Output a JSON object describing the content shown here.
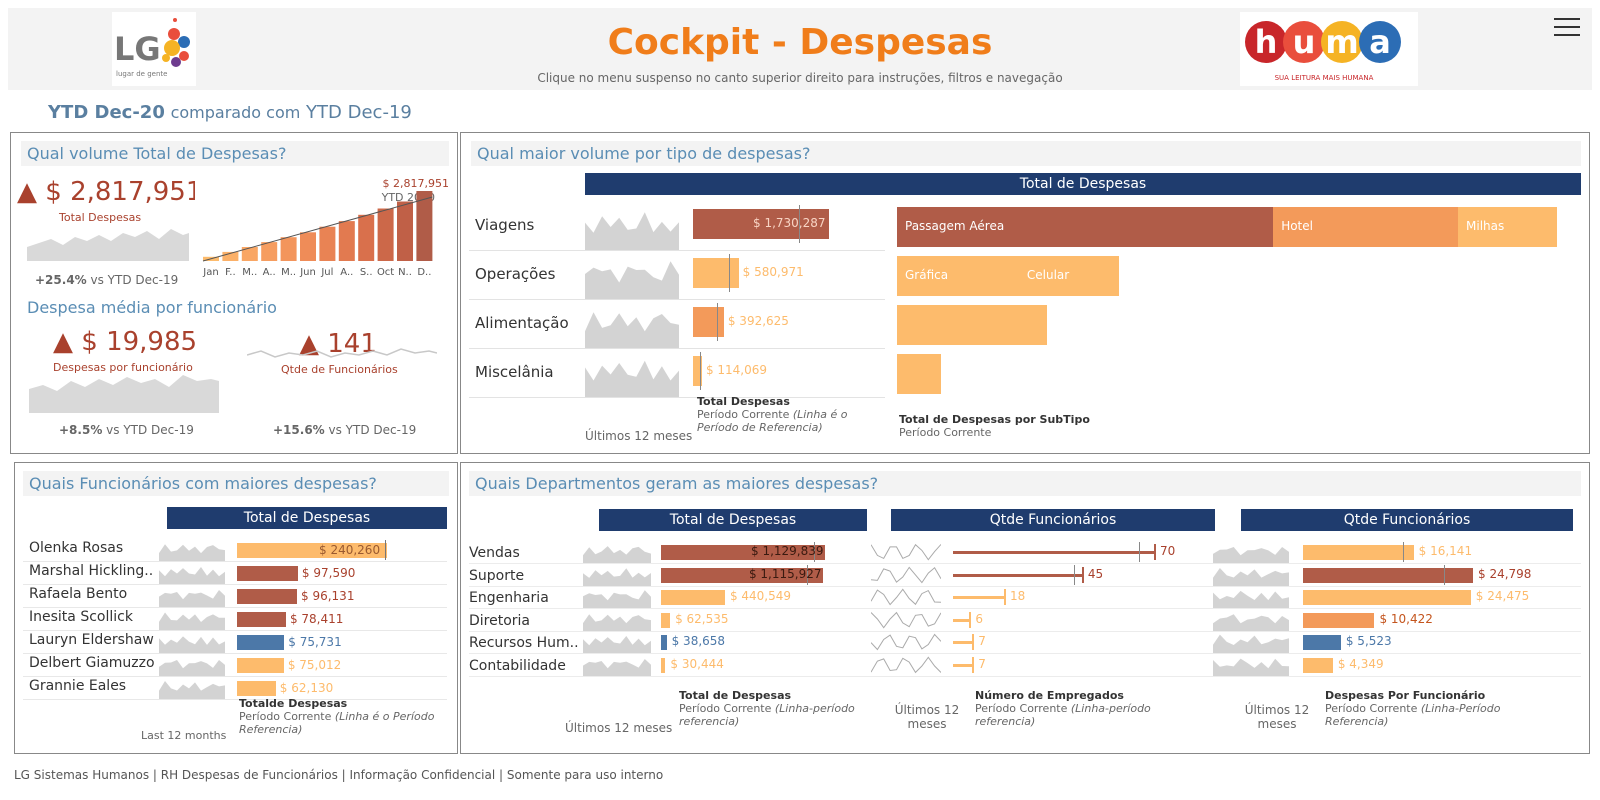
{
  "header": {
    "title": "Cockpit - Despesas",
    "subtitle": "Clique no menu suspenso no canto superior direito para instruções, filtros e navegação",
    "lg_logo_text": "LG",
    "lg_logo_sub": "lugar de gente",
    "huma_logo_tagline": "SUA LEITURA MAIS HUMANA",
    "huma_letters": [
      "h",
      "u",
      "m",
      "a"
    ]
  },
  "period": {
    "current": "YTD Dec-20",
    "compared_label": "comparado com",
    "previous": "YTD Dec-19"
  },
  "colors": {
    "dark_orange": "#b05c48",
    "orange": "#f39a5a",
    "light_orange": "#fdbb6c",
    "blue": "#4c78a8",
    "grey": "#d3d3d3",
    "navy": "#1f3c6e"
  },
  "total_panel": {
    "title": "Qual volume Total de Despesas?",
    "value": "$ 2,817,951",
    "label": "Total Despesas",
    "change": "+25.4%",
    "change_suffix": "vs YTD Dec-19",
    "chart_label_value": "$ 2,817,951",
    "chart_label_ytd": "YTD 2020",
    "months": [
      "Jan",
      "F..",
      "M..",
      "A..",
      "M..",
      "Jun",
      "Jul",
      "A..",
      "S..",
      "Oct",
      "N..",
      "D.."
    ],
    "cumulative_relative": [
      0.06,
      0.13,
      0.2,
      0.27,
      0.34,
      0.41,
      0.49,
      0.57,
      0.66,
      0.75,
      0.85,
      1.0
    ]
  },
  "avg_panel": {
    "title": "Despesa média por funcionário",
    "avg_value": "$ 19,985",
    "avg_label": "Despesas por funcionário",
    "avg_change": "+8.5%",
    "emp_value": "141",
    "emp_label": "Qtde de Funcionários",
    "emp_change": "+15.6%",
    "change_suffix": "vs YTD Dec-19"
  },
  "type_panel": {
    "title": "Qual maior volume por tipo de despesas?",
    "header": "Total de Despesas",
    "categories": [
      "Viagens",
      "Operações",
      "Alimentação",
      "Miscelânia"
    ],
    "values": [
      1730287,
      580971,
      392625,
      114069
    ],
    "value_labels": [
      "$ 1,730,287",
      "$ 580,971",
      "$ 392,625",
      "$ 114,069"
    ],
    "subtypes": [
      [
        {
          "name": "Passagem Aérea",
          "value": 0.57
        },
        {
          "name": "Hotel",
          "value": 0.28
        },
        {
          "name": "Milhas",
          "value": 0.15
        }
      ],
      [
        {
          "name": "Gráfica",
          "value": 0.55
        },
        {
          "name": "Celular",
          "value": 0.45
        }
      ],
      [
        {
          "name": "",
          "value": 1.0
        }
      ],
      [
        {
          "name": "",
          "value": 1.0
        }
      ]
    ],
    "spark_caption": "Últimos 12 meses",
    "bar_caption_title": "Total Despesas",
    "bar_caption_sub": "Período Corrente",
    "bar_caption_ital": "(Linha é o Período de Referencia)",
    "subtype_caption_title": "Total de Despesas por SubTipo",
    "subtype_caption_sub": "Período Corrente"
  },
  "employee_panel": {
    "title": "Quais Funcionários com maiores despesas?",
    "header": "Total de Despesas",
    "names": [
      "Olenka Rosas",
      "Marshal Hickling..",
      "Rafaela Bento",
      "Inesita Scollick",
      "Lauryn Eldershaw",
      "Delbert Giamuzzo",
      "Grannie Eales"
    ],
    "values": [
      240260,
      97590,
      96131,
      78411,
      75731,
      75012,
      62130
    ],
    "value_labels": [
      "$ 240,260",
      "$ 97,590",
      "$ 96,131",
      "$ 78,411",
      "$ 75,731",
      "$ 75,012",
      "$ 62,130"
    ],
    "color_keys": [
      "light_orange",
      "dark_orange",
      "dark_orange",
      "dark_orange",
      "blue",
      "light_orange",
      "light_orange"
    ],
    "spark_caption": "Last 12 months",
    "bar_caption_title": "Totalde Despesas",
    "bar_caption_sub": "Período Corrente",
    "bar_caption_ital": "(Linha é o Período Referencia)"
  },
  "dept_panel": {
    "title": "Quais Departmentos geram as maiores despesas?",
    "departments": [
      "Vendas",
      "Suporte",
      "Engenharia",
      "Diretoria",
      "Recursos Hum..",
      "Contabilidade"
    ],
    "total": {
      "header": "Total de Despesas",
      "values": [
        1129839,
        1115927,
        440549,
        62535,
        38658,
        30444
      ],
      "value_labels": [
        "$ 1,129,839",
        "$ 1,115,927",
        "$ 440,549",
        "$ 62,535",
        "$ 38,658",
        "$ 30,444"
      ],
      "color_keys": [
        "dark_orange",
        "dark_orange",
        "light_orange",
        "light_orange",
        "blue",
        "light_orange"
      ],
      "caption_title": "Total de Despesas",
      "caption_sub": "Período Corrente",
      "caption_ital": "(Linha-período referencia)",
      "spark_caption": "Últimos 12 meses"
    },
    "headcount": {
      "header": "Qtde Funcionários",
      "values": [
        70,
        45,
        18,
        6,
        7,
        7
      ],
      "value_labels": [
        "70",
        "45",
        "18",
        "6",
        "7",
        "7"
      ],
      "color_keys": [
        "dark_orange",
        "dark_orange",
        "light_orange",
        "light_orange",
        "light_orange",
        "light_orange"
      ],
      "caption_title": "Número de Empregados",
      "caption_sub": "Período Corrente",
      "caption_ital": "(Linha-período referencia)",
      "spark_caption": "Últimos 12 meses"
    },
    "per_employee": {
      "header": "Qtde Funcionários",
      "values": [
        16141,
        24798,
        24475,
        10422,
        5523,
        4349
      ],
      "value_labels": [
        "$ 16,141",
        "$ 24,798",
        "$ 24,475",
        "$ 10,422",
        "$ 5,523",
        "$ 4,349"
      ],
      "color_keys": [
        "light_orange",
        "dark_orange",
        "light_orange",
        "orange",
        "blue",
        "light_orange"
      ],
      "caption_title": "Despesas Por Funcionário",
      "caption_sub": "Período Corrente",
      "caption_ital": "(Linha-Período Referencia)",
      "spark_caption": "Últimos 12 meses"
    }
  },
  "footer": "LG Sistemas Humanos | RH Despesas de Funcionários | Informação Confidencial | Somente para uso interno"
}
